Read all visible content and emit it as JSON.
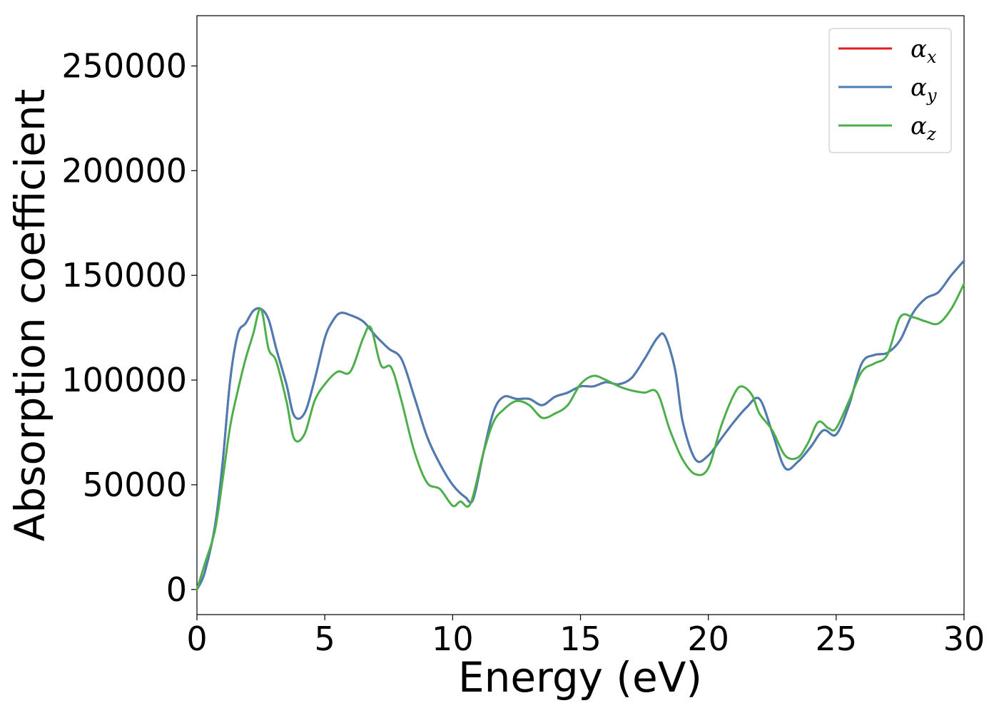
{
  "chart_data": {
    "type": "line",
    "xlabel": "Energy (eV)",
    "ylabel": "Absorption coefficient",
    "xlim": [
      0,
      30
    ],
    "ylim": [
      -12000,
      274000
    ],
    "xticks": [
      0,
      5,
      10,
      15,
      20,
      25,
      30
    ],
    "xtick_labels": [
      "0",
      "5",
      "10",
      "15",
      "20",
      "25",
      "30"
    ],
    "yticks": [
      0,
      50000,
      100000,
      150000,
      200000,
      250000
    ],
    "ytick_labels": [
      "0",
      "50000",
      "100000",
      "150000",
      "200000",
      "250000"
    ],
    "grid": false,
    "legend_position": "top-right",
    "series": [
      {
        "name": "α_x",
        "legend_base": "α",
        "legend_sub": "x",
        "color": "#e41a1c",
        "x": [
          0,
          0.3,
          0.7,
          1.0,
          1.3,
          1.6,
          1.9,
          2.2,
          2.5,
          2.8,
          3.1,
          3.5,
          3.8,
          4.2,
          4.6,
          5.0,
          5.3,
          5.6,
          6.0,
          6.5,
          7.0,
          7.5,
          8.0,
          8.5,
          9.0,
          9.5,
          10.0,
          10.5,
          10.8,
          11.2,
          11.6,
          12.0,
          12.5,
          13.0,
          13.5,
          14.0,
          14.5,
          15.0,
          15.5,
          16.0,
          16.5,
          17.0,
          17.5,
          18.0,
          18.3,
          18.7,
          19.0,
          19.5,
          20.0,
          20.5,
          21.0,
          21.5,
          22.0,
          22.5,
          23.0,
          23.5,
          24.0,
          24.5,
          25.0,
          25.5,
          26.0,
          26.5,
          27.0,
          27.5,
          28.0,
          28.5,
          29.0,
          29.5,
          30.0
        ],
        "y": [
          0,
          8000,
          30000,
          60000,
          100000,
          122000,
          127000,
          133000,
          134000,
          129000,
          115000,
          98000,
          83000,
          84000,
          100000,
          120000,
          128000,
          132000,
          131000,
          128000,
          121000,
          115000,
          110000,
          92000,
          73000,
          60000,
          50000,
          44000,
          43000,
          65000,
          85000,
          92000,
          91000,
          91000,
          88000,
          92000,
          94000,
          97000,
          97000,
          99000,
          98000,
          101000,
          110000,
          120000,
          121000,
          105000,
          80000,
          62000,
          64000,
          72000,
          80000,
          87000,
          91000,
          75000,
          58000,
          61000,
          68000,
          76000,
          74000,
          88000,
          108000,
          112000,
          113000,
          119000,
          132000,
          139000,
          142000,
          150000,
          157000
        ]
      },
      {
        "name": "α_y",
        "legend_base": "α",
        "legend_sub": "y",
        "color": "#4a7db4",
        "x": [
          0,
          0.3,
          0.7,
          1.0,
          1.3,
          1.6,
          1.9,
          2.2,
          2.5,
          2.8,
          3.1,
          3.5,
          3.8,
          4.2,
          4.6,
          5.0,
          5.3,
          5.6,
          6.0,
          6.5,
          7.0,
          7.5,
          8.0,
          8.5,
          9.0,
          9.5,
          10.0,
          10.5,
          10.8,
          11.2,
          11.6,
          12.0,
          12.5,
          13.0,
          13.5,
          14.0,
          14.5,
          15.0,
          15.5,
          16.0,
          16.5,
          17.0,
          17.5,
          18.0,
          18.3,
          18.7,
          19.0,
          19.5,
          20.0,
          20.5,
          21.0,
          21.5,
          22.0,
          22.5,
          23.0,
          23.5,
          24.0,
          24.5,
          25.0,
          25.5,
          26.0,
          26.5,
          27.0,
          27.5,
          28.0,
          28.5,
          29.0,
          29.5,
          30.0
        ],
        "y": [
          0,
          8000,
          30000,
          60000,
          100000,
          122000,
          127000,
          133000,
          134000,
          129000,
          115000,
          98000,
          83000,
          84000,
          100000,
          120000,
          128000,
          132000,
          131000,
          128000,
          121000,
          115000,
          110000,
          92000,
          73000,
          60000,
          50000,
          44000,
          43000,
          65000,
          85000,
          92000,
          91000,
          91000,
          88000,
          92000,
          94000,
          97000,
          97000,
          99000,
          98000,
          101000,
          110000,
          120000,
          121000,
          105000,
          80000,
          62000,
          64000,
          72000,
          80000,
          87000,
          91000,
          75000,
          58000,
          61000,
          68000,
          76000,
          74000,
          88000,
          108000,
          112000,
          113000,
          119000,
          132000,
          139000,
          142000,
          150000,
          157000
        ]
      },
      {
        "name": "α_z",
        "legend_base": "α",
        "legend_sub": "z",
        "color": "#4daf4a",
        "x": [
          0,
          0.3,
          0.7,
          1.0,
          1.3,
          1.6,
          1.9,
          2.2,
          2.5,
          2.8,
          3.1,
          3.5,
          3.8,
          4.2,
          4.6,
          5.0,
          5.5,
          6.0,
          6.5,
          6.8,
          7.2,
          7.6,
          8.0,
          8.5,
          9.0,
          9.5,
          10.0,
          10.3,
          10.7,
          11.2,
          11.6,
          12.0,
          12.5,
          13.0,
          13.5,
          14.0,
          14.5,
          15.0,
          15.5,
          16.0,
          16.5,
          17.0,
          17.5,
          18.0,
          18.5,
          19.0,
          19.5,
          20.0,
          20.5,
          21.0,
          21.3,
          21.7,
          22.0,
          22.5,
          23.0,
          23.5,
          23.9,
          24.3,
          24.7,
          25.0,
          25.5,
          26.0,
          26.5,
          27.0,
          27.5,
          28.0,
          28.5,
          29.0,
          29.5,
          30.0
        ],
        "y": [
          0,
          12000,
          28000,
          52000,
          78000,
          95000,
          110000,
          122000,
          134000,
          115000,
          109000,
          90000,
          72000,
          74000,
          90000,
          98000,
          104000,
          104000,
          120000,
          125000,
          107000,
          106000,
          90000,
          66000,
          51000,
          48000,
          40000,
          42000,
          41000,
          65000,
          80000,
          86000,
          90000,
          88000,
          82000,
          84000,
          88000,
          98000,
          102000,
          100000,
          97000,
          95000,
          94000,
          94000,
          76000,
          62000,
          55000,
          58000,
          78000,
          93000,
          97000,
          93000,
          84000,
          76000,
          64000,
          63000,
          70000,
          80000,
          77000,
          77000,
          90000,
          104000,
          108000,
          112000,
          130000,
          130000,
          128000,
          127000,
          134000,
          146000
        ]
      }
    ]
  }
}
